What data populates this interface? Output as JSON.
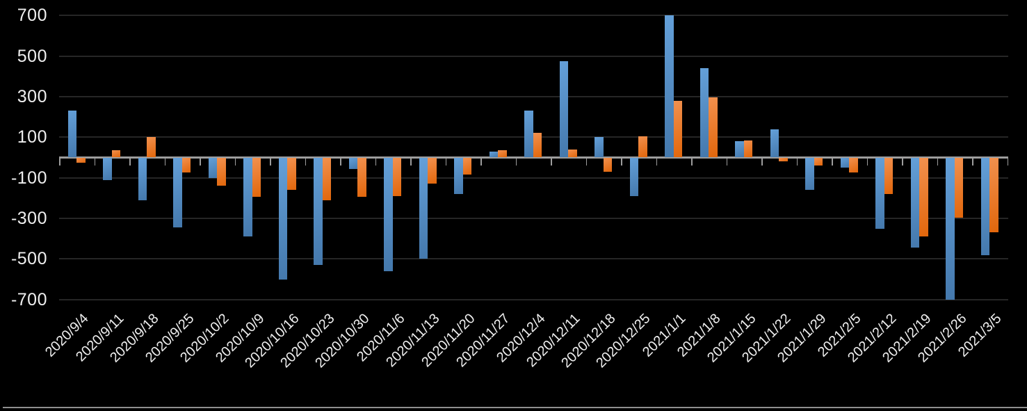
{
  "chart_data": {
    "type": "bar",
    "title": "",
    "xlabel": "",
    "ylabel": "",
    "legend": false,
    "grid": true,
    "background": "#000000",
    "text_color": "#efefef",
    "grid_color": "#262626",
    "axis_color": "#9d9d9d",
    "bottom_line_color": "#8f8f8f",
    "ylim": [
      -760,
      760
    ],
    "yticks": [
      700,
      500,
      300,
      100,
      -100,
      -300,
      -500,
      -700
    ],
    "categories": [
      "2020/9/4",
      "2020/9/11",
      "2020/9/18",
      "2020/9/25",
      "2020/10/2",
      "2020/10/9",
      "2020/10/16",
      "2020/10/23",
      "2020/10/30",
      "2020/11/6",
      "2020/11/13",
      "2020/11/20",
      "2020/11/27",
      "2020/12/4",
      "2020/12/11",
      "2020/12/18",
      "2020/12/25",
      "2021/1/1",
      "2021/1/8",
      "2021/1/15",
      "2021/1/22",
      "2021/1/29",
      "2021/2/5",
      "2021/2/12",
      "2021/2/19",
      "2021/2/26",
      "2021/3/5"
    ],
    "series": [
      {
        "name": "series-blue",
        "color_top": "#64a0d9",
        "color_bottom": "#4478ac",
        "values": [
          230,
          -110,
          -210,
          -345,
          -100,
          -390,
          -600,
          -530,
          -55,
          -560,
          -500,
          -180,
          30,
          230,
          475,
          100,
          -190,
          700,
          440,
          80,
          140,
          -160,
          -50,
          -350,
          -445,
          -700,
          -480
        ]
      },
      {
        "name": "series-orange",
        "color_top": "#f2914f",
        "color_bottom": "#e1660b",
        "values": [
          -25,
          35,
          100,
          -75,
          -140,
          -195,
          -160,
          -210,
          -195,
          -190,
          -130,
          -85,
          35,
          120,
          40,
          -70,
          105,
          280,
          295,
          85,
          -20,
          -40,
          -75,
          -180,
          -390,
          -295,
          -370
        ]
      }
    ]
  }
}
